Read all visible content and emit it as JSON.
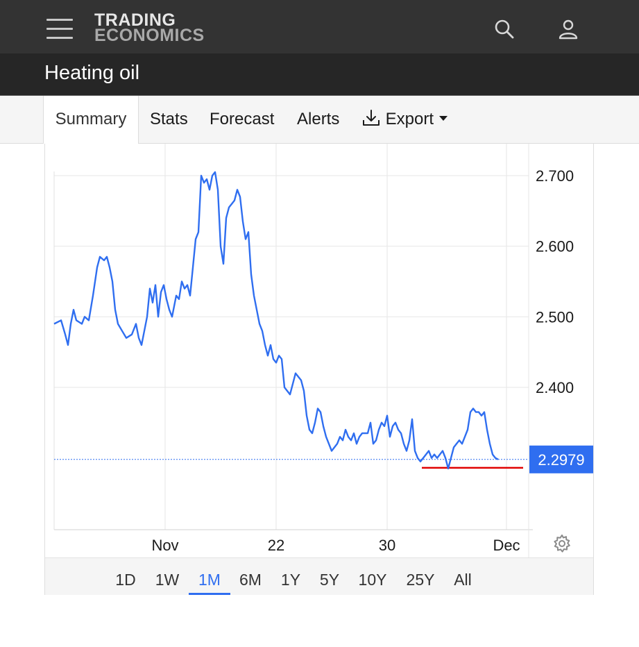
{
  "header": {
    "menu_icon": "hamburger-menu-icon",
    "logo_line1": "TRADING",
    "logo_line2": "ECONOMICS",
    "search_icon": "search-icon",
    "user_icon": "user-icon"
  },
  "page": {
    "title": "Heating oil"
  },
  "tabs": [
    {
      "label": "Summary",
      "active": true
    },
    {
      "label": "Stats"
    },
    {
      "label": "Forecast"
    },
    {
      "label": "Alerts"
    },
    {
      "label": "Export",
      "icon": "download-icon",
      "caret": "caret-down-icon"
    }
  ],
  "range_buttons": [
    {
      "label": "1D"
    },
    {
      "label": "1W"
    },
    {
      "label": "1M",
      "active": true
    },
    {
      "label": "6M"
    },
    {
      "label": "1Y"
    },
    {
      "label": "5Y"
    },
    {
      "label": "10Y"
    },
    {
      "label": "25Y"
    },
    {
      "label": "All"
    }
  ],
  "settings_icon": "gear-icon",
  "colors": {
    "line": "#2f6ef0",
    "last_label_bg": "#2f6ef0",
    "support_line": "#e00000",
    "grid": "#e6e6e6"
  },
  "chart_data": {
    "type": "line",
    "title": "",
    "xlabel": "",
    "ylabel": "",
    "ylim": [
      2.2,
      2.76
    ],
    "y_ticks": [
      2.7,
      2.6,
      2.5,
      2.4
    ],
    "y_tick_labels": [
      "2.700",
      "2.600",
      "2.500",
      "2.400"
    ],
    "x_ticks": [
      {
        "label": "Nov",
        "x": 8.0
      },
      {
        "label": "22",
        "x": 16.0
      },
      {
        "label": "30",
        "x": 24.0
      },
      {
        "label": "Dec",
        "x": 32.6
      }
    ],
    "xlim": [
      0,
      34.2
    ],
    "last_value": 2.2979,
    "last_value_label": "2.2979",
    "grid": true,
    "series": [
      {
        "values": [
          [
            0.0,
            2.49
          ],
          [
            0.5,
            2.495
          ],
          [
            0.8,
            2.475
          ],
          [
            1.0,
            2.46
          ],
          [
            1.2,
            2.49
          ],
          [
            1.4,
            2.51
          ],
          [
            1.6,
            2.495
          ],
          [
            2.0,
            2.49
          ],
          [
            2.2,
            2.5
          ],
          [
            2.5,
            2.495
          ],
          [
            2.8,
            2.53
          ],
          [
            3.1,
            2.57
          ],
          [
            3.3,
            2.585
          ],
          [
            3.6,
            2.58
          ],
          [
            3.8,
            2.585
          ],
          [
            4.0,
            2.57
          ],
          [
            4.2,
            2.55
          ],
          [
            4.4,
            2.51
          ],
          [
            4.6,
            2.49
          ],
          [
            4.9,
            2.48
          ],
          [
            5.2,
            2.47
          ],
          [
            5.6,
            2.475
          ],
          [
            5.9,
            2.49
          ],
          [
            6.1,
            2.47
          ],
          [
            6.3,
            2.46
          ],
          [
            6.5,
            2.48
          ],
          [
            6.7,
            2.5
          ],
          [
            6.9,
            2.54
          ],
          [
            7.1,
            2.52
          ],
          [
            7.3,
            2.545
          ],
          [
            7.5,
            2.5
          ],
          [
            7.7,
            2.535
          ],
          [
            7.9,
            2.545
          ],
          [
            8.1,
            2.525
          ],
          [
            8.3,
            2.51
          ],
          [
            8.5,
            2.5
          ],
          [
            8.8,
            2.53
          ],
          [
            9.0,
            2.525
          ],
          [
            9.2,
            2.55
          ],
          [
            9.4,
            2.54
          ],
          [
            9.6,
            2.545
          ],
          [
            9.8,
            2.53
          ],
          [
            10.0,
            2.57
          ],
          [
            10.2,
            2.61
          ],
          [
            10.4,
            2.62
          ],
          [
            10.6,
            2.7
          ],
          [
            10.8,
            2.69
          ],
          [
            11.0,
            2.695
          ],
          [
            11.2,
            2.68
          ],
          [
            11.4,
            2.7
          ],
          [
            11.6,
            2.705
          ],
          [
            11.8,
            2.68
          ],
          [
            12.0,
            2.6
          ],
          [
            12.2,
            2.575
          ],
          [
            12.4,
            2.64
          ],
          [
            12.6,
            2.655
          ],
          [
            12.8,
            2.66
          ],
          [
            13.0,
            2.665
          ],
          [
            13.2,
            2.68
          ],
          [
            13.4,
            2.67
          ],
          [
            13.6,
            2.635
          ],
          [
            13.8,
            2.61
          ],
          [
            14.0,
            2.62
          ],
          [
            14.2,
            2.56
          ],
          [
            14.4,
            2.53
          ],
          [
            14.6,
            2.51
          ],
          [
            14.8,
            2.49
          ],
          [
            15.0,
            2.48
          ],
          [
            15.2,
            2.46
          ],
          [
            15.4,
            2.445
          ],
          [
            15.6,
            2.46
          ],
          [
            15.8,
            2.44
          ],
          [
            16.0,
            2.435
          ],
          [
            16.2,
            2.445
          ],
          [
            16.4,
            2.44
          ],
          [
            16.6,
            2.4
          ],
          [
            16.8,
            2.395
          ],
          [
            17.0,
            2.39
          ],
          [
            17.2,
            2.405
          ],
          [
            17.4,
            2.42
          ],
          [
            17.6,
            2.415
          ],
          [
            17.8,
            2.41
          ],
          [
            18.0,
            2.395
          ],
          [
            18.2,
            2.36
          ],
          [
            18.4,
            2.34
          ],
          [
            18.6,
            2.335
          ],
          [
            18.8,
            2.35
          ],
          [
            19.0,
            2.37
          ],
          [
            19.2,
            2.365
          ],
          [
            19.4,
            2.345
          ],
          [
            19.6,
            2.33
          ],
          [
            19.8,
            2.32
          ],
          [
            20.0,
            2.31
          ],
          [
            20.2,
            2.315
          ],
          [
            20.4,
            2.32
          ],
          [
            20.6,
            2.33
          ],
          [
            20.8,
            2.325
          ],
          [
            21.0,
            2.34
          ],
          [
            21.2,
            2.33
          ],
          [
            21.4,
            2.325
          ],
          [
            21.6,
            2.335
          ],
          [
            21.8,
            2.32
          ],
          [
            22.0,
            2.33
          ],
          [
            22.2,
            2.335
          ],
          [
            22.4,
            2.335
          ],
          [
            22.6,
            2.335
          ],
          [
            22.8,
            2.35
          ],
          [
            23.0,
            2.32
          ],
          [
            23.2,
            2.325
          ],
          [
            23.4,
            2.34
          ],
          [
            23.6,
            2.35
          ],
          [
            23.8,
            2.345
          ],
          [
            24.0,
            2.36
          ],
          [
            24.2,
            2.33
          ],
          [
            24.4,
            2.345
          ],
          [
            24.6,
            2.35
          ],
          [
            24.8,
            2.34
          ],
          [
            25.0,
            2.335
          ],
          [
            25.2,
            2.32
          ],
          [
            25.4,
            2.31
          ],
          [
            25.6,
            2.325
          ],
          [
            25.8,
            2.355
          ],
          [
            26.0,
            2.31
          ],
          [
            26.2,
            2.3
          ],
          [
            26.4,
            2.295
          ],
          [
            26.6,
            2.3
          ],
          [
            26.8,
            2.305
          ],
          [
            27.0,
            2.31
          ],
          [
            27.2,
            2.3
          ],
          [
            27.4,
            2.305
          ],
          [
            27.6,
            2.3
          ],
          [
            27.8,
            2.305
          ],
          [
            28.0,
            2.31
          ],
          [
            28.2,
            2.3
          ],
          [
            28.4,
            2.285
          ],
          [
            28.6,
            2.3
          ],
          [
            28.8,
            2.315
          ],
          [
            29.0,
            2.32
          ],
          [
            29.2,
            2.325
          ],
          [
            29.4,
            2.32
          ],
          [
            29.6,
            2.33
          ],
          [
            29.8,
            2.34
          ],
          [
            30.0,
            2.365
          ],
          [
            30.2,
            2.37
          ],
          [
            30.4,
            2.365
          ],
          [
            30.6,
            2.365
          ],
          [
            30.8,
            2.36
          ],
          [
            31.0,
            2.365
          ],
          [
            31.2,
            2.34
          ],
          [
            31.4,
            2.32
          ],
          [
            31.6,
            2.305
          ],
          [
            31.8,
            2.3
          ],
          [
            32.0,
            2.2979
          ]
        ]
      }
    ],
    "support_line": {
      "value": 2.286,
      "x_start": 26.5,
      "x_end": 33.8
    }
  }
}
